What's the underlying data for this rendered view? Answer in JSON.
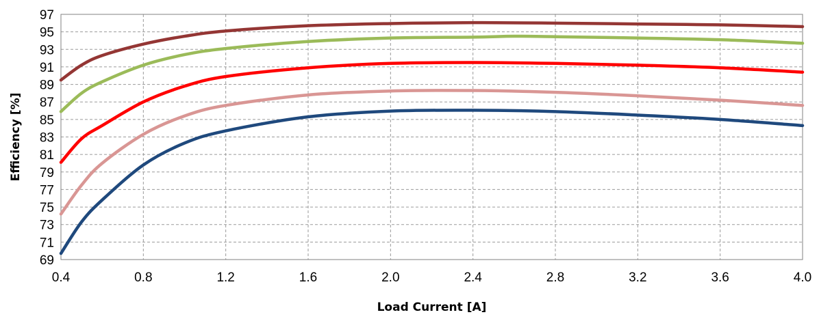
{
  "chart_data": {
    "type": "line",
    "title": "",
    "xlabel": "Load Current [A]",
    "ylabel": "Efficiency [%]",
    "xlim": [
      0.4,
      4.0
    ],
    "ylim": [
      69,
      97
    ],
    "x_ticks": [
      "0.4",
      "0.8",
      "1.2",
      "1.6",
      "2.0",
      "2.4",
      "2.8",
      "3.2",
      "3.6",
      "4.0"
    ],
    "y_ticks": [
      "69",
      "71",
      "73",
      "75",
      "77",
      "79",
      "81",
      "83",
      "85",
      "87",
      "89",
      "91",
      "93",
      "95",
      "97"
    ],
    "grid": true,
    "legend": "none",
    "series": [
      {
        "color": "#943634",
        "points": [
          [
            0.4,
            89.5
          ],
          [
            0.5,
            91.2
          ],
          [
            0.6,
            92.3
          ],
          [
            0.8,
            93.6
          ],
          [
            1.0,
            94.5
          ],
          [
            1.2,
            95.1
          ],
          [
            1.6,
            95.7
          ],
          [
            2.0,
            95.95
          ],
          [
            2.4,
            96.05
          ],
          [
            2.8,
            96.0
          ],
          [
            3.2,
            95.9
          ],
          [
            3.6,
            95.8
          ],
          [
            4.0,
            95.6
          ]
        ]
      },
      {
        "color": "#9BBB59",
        "points": [
          [
            0.4,
            85.9
          ],
          [
            0.5,
            88.0
          ],
          [
            0.6,
            89.3
          ],
          [
            0.8,
            91.2
          ],
          [
            1.0,
            92.4
          ],
          [
            1.2,
            93.1
          ],
          [
            1.6,
            93.9
          ],
          [
            2.0,
            94.3
          ],
          [
            2.4,
            94.4
          ],
          [
            2.6,
            94.5
          ],
          [
            2.8,
            94.45
          ],
          [
            3.2,
            94.3
          ],
          [
            3.6,
            94.1
          ],
          [
            4.0,
            93.7
          ]
        ]
      },
      {
        "color": "#FF0000",
        "points": [
          [
            0.4,
            80.1
          ],
          [
            0.5,
            82.8
          ],
          [
            0.6,
            84.3
          ],
          [
            0.8,
            87.0
          ],
          [
            1.0,
            88.8
          ],
          [
            1.2,
            89.9
          ],
          [
            1.6,
            90.9
          ],
          [
            2.0,
            91.4
          ],
          [
            2.4,
            91.5
          ],
          [
            2.8,
            91.4
          ],
          [
            3.2,
            91.2
          ],
          [
            3.6,
            90.9
          ],
          [
            4.0,
            90.4
          ]
        ]
      },
      {
        "color": "#D99694",
        "points": [
          [
            0.4,
            74.2
          ],
          [
            0.5,
            77.5
          ],
          [
            0.6,
            80.0
          ],
          [
            0.8,
            83.3
          ],
          [
            1.0,
            85.4
          ],
          [
            1.2,
            86.6
          ],
          [
            1.6,
            87.8
          ],
          [
            2.0,
            88.25
          ],
          [
            2.4,
            88.3
          ],
          [
            2.8,
            88.1
          ],
          [
            3.2,
            87.7
          ],
          [
            3.6,
            87.2
          ],
          [
            4.0,
            86.6
          ]
        ]
      },
      {
        "color": "#1F497D",
        "points": [
          [
            0.4,
            69.7
          ],
          [
            0.5,
            73.3
          ],
          [
            0.6,
            75.8
          ],
          [
            0.8,
            79.8
          ],
          [
            1.0,
            82.3
          ],
          [
            1.2,
            83.7
          ],
          [
            1.6,
            85.3
          ],
          [
            2.0,
            85.95
          ],
          [
            2.4,
            86.05
          ],
          [
            2.8,
            85.9
          ],
          [
            3.2,
            85.5
          ],
          [
            3.6,
            85.0
          ],
          [
            4.0,
            84.3
          ]
        ]
      }
    ]
  }
}
